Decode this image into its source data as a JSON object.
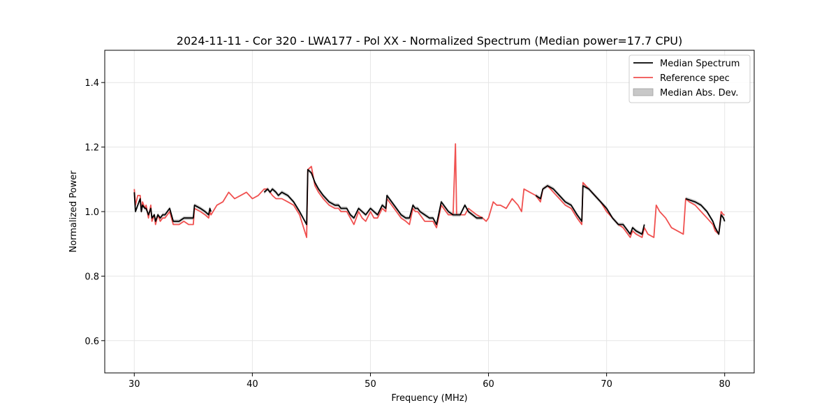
{
  "chart_data": {
    "type": "line",
    "title": "2024-11-11 - Cor 320 - LWA177 - Pol XX - Normalized Spectrum (Median power=17.7 CPU)",
    "xlabel": "Frequency (MHz)",
    "ylabel": "Normalized Power",
    "xlim": [
      27.5,
      82.5
    ],
    "ylim": [
      0.5,
      1.5
    ],
    "xticks": [
      30,
      40,
      50,
      60,
      70,
      80
    ],
    "yticks": [
      0.6,
      0.8,
      1.0,
      1.2,
      1.4
    ],
    "xtick_labels": [
      "30",
      "40",
      "50",
      "60",
      "70",
      "80"
    ],
    "ytick_labels": [
      "0.6",
      "0.8",
      "1.0",
      "1.2",
      "1.4"
    ],
    "grid": true,
    "legend_position": "top-right",
    "legend": [
      "Median Spectrum",
      "Reference spec",
      "Median Abs. Dev."
    ],
    "colors": {
      "median": "#000000",
      "reference": "#f0504f",
      "mad": "#c8c8c8",
      "grid": "#e6e6e6"
    },
    "series": [
      {
        "name": "Median Spectrum",
        "x": [
          30.0,
          30.1,
          30.3,
          30.5,
          30.6,
          30.7,
          30.9,
          31.0,
          31.2,
          31.4,
          31.5,
          31.7,
          31.8,
          32.0,
          32.2,
          32.4,
          32.6,
          32.8,
          33.0,
          33.3,
          33.4,
          33.8,
          34.2,
          34.6,
          35.0,
          35.1,
          35.6,
          36.0,
          36.3,
          36.4,
          36.5,
          41.0,
          41.3,
          41.5,
          41.7,
          42.0,
          42.2,
          42.5,
          43.0,
          43.5,
          44.0,
          44.6,
          44.7,
          45.0,
          45.3,
          45.6,
          46.0,
          46.5,
          47.0,
          47.3,
          47.5,
          48.0,
          48.3,
          48.6,
          49.0,
          49.3,
          49.6,
          50.0,
          50.3,
          50.6,
          51.0,
          51.3,
          51.4,
          52.0,
          52.6,
          53.0,
          53.3,
          53.6,
          53.8,
          54.0,
          54.2,
          54.6,
          55.0,
          55.3,
          55.6,
          56.0,
          56.4,
          56.6,
          57.0,
          57.3,
          57.6,
          58.0,
          58.3,
          59.0,
          59.5,
          64.0,
          64.4,
          64.6,
          65.0,
          65.5,
          66.0,
          66.5,
          67.0,
          67.5,
          67.9,
          68.0,
          68.5,
          69.0,
          69.5,
          70.0,
          70.5,
          71.0,
          71.4,
          71.6,
          71.8,
          72.0,
          72.2,
          72.5,
          73.0,
          73.2,
          76.7,
          77.5,
          78.0,
          78.5,
          79.0,
          79.2,
          79.5,
          79.7,
          79.9,
          80.0
        ],
        "values": [
          1.06,
          1.0,
          1.02,
          1.04,
          1.0,
          1.02,
          1.01,
          1.01,
          0.99,
          1.01,
          0.98,
          0.99,
          0.97,
          0.99,
          0.98,
          0.99,
          0.99,
          1.0,
          1.01,
          0.97,
          0.97,
          0.97,
          0.98,
          0.98,
          0.98,
          1.02,
          1.01,
          1.0,
          0.99,
          1.01,
          1.0,
          1.06,
          1.07,
          1.06,
          1.07,
          1.06,
          1.05,
          1.06,
          1.05,
          1.03,
          1.0,
          0.96,
          1.13,
          1.12,
          1.09,
          1.07,
          1.05,
          1.03,
          1.02,
          1.02,
          1.01,
          1.01,
          0.99,
          0.98,
          1.01,
          1.0,
          0.99,
          1.01,
          1.0,
          0.99,
          1.02,
          1.01,
          1.05,
          1.02,
          0.99,
          0.98,
          0.98,
          1.02,
          1.01,
          1.01,
          1.0,
          0.99,
          0.98,
          0.98,
          0.96,
          1.03,
          1.01,
          1.0,
          0.99,
          0.99,
          0.99,
          1.02,
          1.0,
          0.98,
          0.98,
          1.05,
          1.04,
          1.07,
          1.08,
          1.07,
          1.05,
          1.03,
          1.02,
          0.99,
          0.97,
          1.08,
          1.07,
          1.05,
          1.03,
          1.01,
          0.98,
          0.96,
          0.96,
          0.95,
          0.94,
          0.93,
          0.95,
          0.94,
          0.93,
          0.96,
          1.04,
          1.03,
          1.02,
          1.0,
          0.97,
          0.95,
          0.93,
          0.99,
          0.98,
          0.97
        ]
      },
      {
        "name": "Reference spec",
        "x": [
          30.0,
          30.1,
          30.3,
          30.5,
          30.6,
          30.7,
          30.9,
          31.0,
          31.2,
          31.4,
          31.5,
          31.7,
          31.8,
          32.0,
          32.2,
          32.4,
          32.6,
          32.8,
          33.0,
          33.3,
          33.4,
          33.8,
          34.2,
          34.6,
          35.0,
          35.1,
          35.6,
          36.0,
          36.3,
          36.4,
          36.5,
          37.0,
          37.5,
          38.0,
          38.5,
          39.0,
          39.5,
          40.0,
          40.5,
          41.0,
          41.3,
          41.5,
          41.7,
          42.0,
          42.2,
          42.5,
          43.0,
          43.5,
          44.0,
          44.6,
          44.7,
          45.0,
          45.3,
          45.6,
          46.0,
          46.5,
          47.0,
          47.3,
          47.5,
          48.0,
          48.3,
          48.6,
          49.0,
          49.3,
          49.6,
          50.0,
          50.3,
          50.6,
          51.0,
          51.3,
          51.4,
          52.0,
          52.6,
          53.0,
          53.3,
          53.6,
          53.8,
          54.0,
          54.2,
          54.6,
          55.0,
          55.3,
          55.6,
          56.0,
          56.4,
          56.6,
          57.0,
          57.2,
          57.3,
          57.6,
          58.0,
          58.3,
          59.0,
          59.5,
          59.8,
          60.0,
          60.4,
          60.7,
          61.0,
          61.5,
          62.0,
          62.5,
          62.8,
          63.0,
          63.5,
          64.0,
          64.4,
          64.6,
          65.0,
          65.5,
          66.0,
          66.5,
          67.0,
          67.5,
          67.9,
          68.0,
          68.5,
          69.0,
          69.5,
          70.0,
          70.5,
          71.0,
          71.4,
          71.6,
          71.8,
          72.0,
          72.2,
          72.5,
          73.0,
          73.2,
          73.5,
          74.0,
          74.2,
          74.5,
          75.0,
          75.5,
          76.0,
          76.5,
          76.7,
          77.0,
          77.5,
          78.0,
          78.5,
          79.0,
          79.2,
          79.5,
          79.7,
          79.9,
          80.0
        ],
        "values": [
          1.07,
          1.02,
          1.05,
          1.05,
          1.0,
          1.03,
          1.01,
          1.02,
          0.98,
          1.02,
          0.97,
          0.99,
          0.96,
          0.99,
          0.97,
          0.98,
          0.98,
          0.99,
          1.0,
          0.96,
          0.96,
          0.96,
          0.97,
          0.96,
          0.96,
          1.01,
          1.0,
          0.99,
          0.98,
          1.0,
          0.99,
          1.02,
          1.03,
          1.06,
          1.04,
          1.05,
          1.06,
          1.04,
          1.05,
          1.07,
          1.07,
          1.06,
          1.05,
          1.04,
          1.04,
          1.04,
          1.03,
          1.02,
          0.99,
          0.92,
          1.13,
          1.14,
          1.08,
          1.06,
          1.04,
          1.02,
          1.01,
          1.01,
          1.0,
          1.0,
          0.98,
          0.96,
          1.0,
          0.98,
          0.97,
          1.0,
          0.98,
          0.98,
          1.01,
          1.0,
          1.04,
          1.01,
          0.98,
          0.97,
          0.96,
          1.01,
          1.0,
          1.0,
          0.99,
          0.97,
          0.97,
          0.97,
          0.95,
          1.02,
          1.0,
          0.99,
          0.99,
          1.21,
          0.99,
          0.99,
          0.99,
          1.01,
          0.99,
          0.98,
          0.97,
          0.98,
          1.03,
          1.02,
          1.02,
          1.01,
          1.04,
          1.02,
          1.0,
          1.07,
          1.06,
          1.05,
          1.03,
          1.07,
          1.08,
          1.06,
          1.04,
          1.02,
          1.01,
          0.98,
          0.96,
          1.09,
          1.07,
          1.05,
          1.03,
          1.0,
          0.98,
          0.96,
          0.95,
          0.94,
          0.93,
          0.92,
          0.94,
          0.93,
          0.92,
          0.95,
          0.93,
          0.92,
          1.02,
          1.0,
          0.98,
          0.95,
          0.94,
          0.93,
          1.04,
          1.03,
          1.02,
          1.0,
          0.98,
          0.96,
          0.94,
          0.93,
          1.0,
          0.99,
          0.99
        ]
      }
    ],
    "mad_band_width": 0.006
  }
}
